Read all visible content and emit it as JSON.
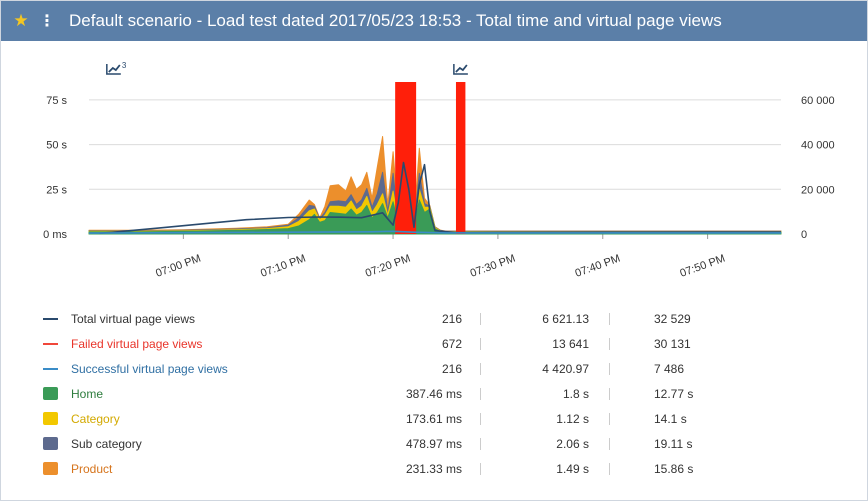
{
  "header": {
    "title": "Default scenario - Load test dated 2017/05/23 18:53 - Total time and virtual page views",
    "star_icon": "star-icon",
    "menu_icon": "kebab-menu-icon"
  },
  "chart_data": {
    "type": "area",
    "x_ticks": [
      "07:00 PM",
      "07:10 PM",
      "07:20 PM",
      "07:30 PM",
      "07:40 PM",
      "07:50 PM"
    ],
    "x_tick_minutes": [
      0,
      10,
      20,
      30,
      40,
      50
    ],
    "x_range_minutes": [
      -9,
      57
    ],
    "y_left": {
      "ticks": [
        "0 ms",
        "25 s",
        "50 s",
        "75 s"
      ],
      "tick_values": [
        0,
        25,
        50,
        75
      ],
      "range": [
        0,
        85
      ]
    },
    "y_right": {
      "ticks": [
        "0",
        "20 000",
        "40 000",
        "60 000"
      ],
      "tick_values": [
        0,
        20000,
        40000,
        60000
      ],
      "range": [
        0,
        68000
      ]
    },
    "grid": true,
    "annotation_icons": [
      "trend-chart-icon",
      "trend-chart-icon"
    ],
    "annotation_icon_superscript": "3",
    "annotation_minutes": [
      -7.3,
      25.8
    ],
    "stack_x_minutes": [
      -9,
      -4,
      0,
      5,
      8,
      10,
      11,
      12,
      12.5,
      13,
      13.5,
      14,
      14.8,
      15.5,
      16,
      16.5,
      17,
      17.5,
      18,
      18.5,
      19,
      19.5,
      20,
      20.5,
      21,
      21.5,
      22,
      22.5,
      23,
      23.5,
      24,
      24.5,
      25,
      26,
      30,
      40,
      50,
      57
    ],
    "stacked_series": [
      {
        "name": "Home",
        "color": "#3a9b57",
        "values": [
          1.2,
          1.2,
          1.5,
          2.0,
          2.5,
          3.0,
          4.5,
          8.0,
          11.0,
          6.5,
          7.5,
          12.0,
          11.5,
          11.0,
          14.0,
          10.5,
          12.0,
          16.0,
          9.0,
          12.0,
          17.0,
          9.0,
          18.0,
          5.0,
          14.0,
          21.0,
          4.0,
          19.0,
          12.0,
          14.0,
          3.0,
          1.5,
          1.0,
          1.0,
          1.0,
          1.0,
          1.0,
          1.0
        ]
      },
      {
        "name": "Category",
        "color": "#f2c800",
        "values": [
          0.3,
          0.3,
          0.3,
          0.4,
          0.5,
          1.0,
          2.5,
          5.0,
          3.0,
          1.5,
          3.0,
          3.5,
          4.0,
          4.0,
          4.5,
          3.0,
          3.5,
          5.0,
          3.0,
          4.5,
          5.5,
          1.5,
          6.0,
          1.0,
          3.5,
          5.5,
          1.0,
          6.0,
          3.0,
          1.0,
          0.5,
          0.3,
          0.3,
          0.3,
          0.3,
          0.3,
          0.3,
          0.3
        ]
      },
      {
        "name": "Sub category",
        "color": "#5d6a8e",
        "values": [
          0.3,
          0.3,
          0.3,
          0.4,
          0.5,
          1.0,
          2.0,
          3.0,
          1.5,
          0.5,
          1.5,
          2.5,
          3.0,
          3.0,
          3.5,
          3.0,
          3.5,
          4.5,
          3.0,
          6.0,
          12.0,
          2.0,
          10.0,
          1.0,
          7.0,
          6.0,
          1.0,
          9.0,
          2.0,
          0.5,
          0.3,
          0.2,
          0.2,
          0.2,
          0.2,
          0.2,
          0.2,
          0.2
        ]
      },
      {
        "name": "Product",
        "color": "#ec8f2c",
        "values": [
          0.3,
          0.3,
          0.3,
          0.4,
          0.5,
          0.5,
          2.0,
          3.0,
          1.0,
          0.5,
          3.5,
          9.0,
          9.0,
          6.0,
          10.0,
          8.5,
          8.5,
          9.0,
          5.0,
          15.0,
          20.0,
          4.0,
          12.0,
          3.0,
          16.0,
          5.0,
          2.0,
          14.0,
          3.0,
          0.5,
          0.2,
          0.2,
          0.2,
          0.2,
          0.2,
          0.2,
          0.2,
          0.2
        ]
      }
    ],
    "failed_bars": {
      "name": "Failed virtual page views",
      "color": "#ff1f0a",
      "ranges_minutes": [
        [
          20.2,
          22.2
        ],
        [
          26.0,
          26.9
        ]
      ],
      "value": 68000
    },
    "line_series": [
      {
        "name": "Total virtual page views",
        "color": "#2a4a6d",
        "axis": "right",
        "x_minutes": [
          -8,
          -6,
          -2,
          2,
          6,
          10,
          13,
          15,
          17,
          19,
          20,
          20.5,
          21,
          21.5,
          22,
          22.5,
          23,
          23.5,
          24,
          26,
          30,
          40,
          50,
          57
        ],
        "values": [
          300,
          1100,
          2800,
          4600,
          6400,
          7400,
          7600,
          7500,
          7300,
          9500,
          4000,
          14000,
          32000,
          20000,
          3000,
          22000,
          31000,
          10000,
          1500,
          600,
          700,
          800,
          900,
          900
        ]
      },
      {
        "name": "Successful virtual page views",
        "color": "#3a8cc7",
        "axis": "right",
        "x_minutes": [
          -9,
          0,
          10,
          18,
          20,
          22,
          24,
          25,
          30,
          40,
          50,
          57
        ],
        "values": [
          400,
          600,
          800,
          1000,
          1200,
          800,
          600,
          500,
          500,
          500,
          500,
          500
        ]
      }
    ]
  },
  "legend": {
    "items": [
      {
        "name": "Total virtual page views",
        "type": "line",
        "color": "#2a4a6d",
        "text_color": "#333333",
        "min": "216",
        "avg": "6 621.13",
        "max": "32 529"
      },
      {
        "name": "Failed virtual page views",
        "type": "line",
        "color": "#f0473a",
        "text_color": "#e8342a",
        "min": "672",
        "avg": "13 641",
        "max": "30 131"
      },
      {
        "name": "Successful virtual page views",
        "type": "line",
        "color": "#3a8cc7",
        "text_color": "#2f6fa3",
        "min": "216",
        "avg": "4 420.97",
        "max": "7 486"
      },
      {
        "name": "Home",
        "type": "box",
        "color": "#3a9b57",
        "text_color": "#2e7d3e",
        "min": "387.46 ms",
        "avg": "1.8 s",
        "max": "12.77 s"
      },
      {
        "name": "Category",
        "type": "box",
        "color": "#f2c800",
        "text_color": "#d3a900",
        "min": "173.61 ms",
        "avg": "1.12 s",
        "max": "14.1 s"
      },
      {
        "name": "Sub category",
        "type": "box",
        "color": "#5d6a8e",
        "text_color": "#333333",
        "min": "478.97 ms",
        "avg": "2.06 s",
        "max": "19.11 s"
      },
      {
        "name": "Product",
        "type": "box",
        "color": "#ec8f2c",
        "text_color": "#d6741c",
        "min": "231.33 ms",
        "avg": "1.49 s",
        "max": "15.86 s"
      }
    ]
  }
}
